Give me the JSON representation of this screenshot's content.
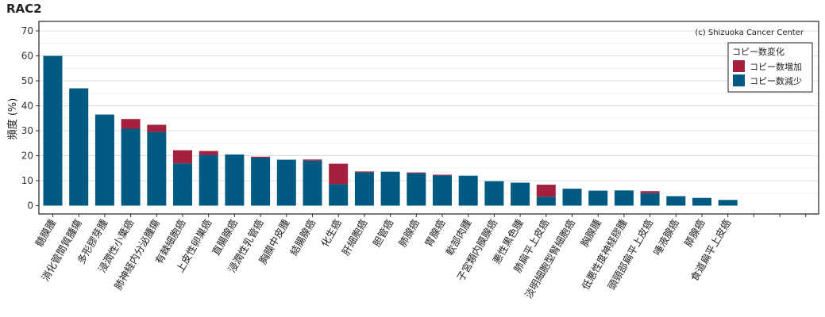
{
  "chart_data": {
    "type": "bar",
    "stacked": true,
    "title": "RAC2",
    "ylabel": "頻度 (%)",
    "xlabel": "",
    "ylim": [
      0,
      72
    ],
    "yticks": [
      0,
      10,
      20,
      30,
      40,
      50,
      60,
      70
    ],
    "grid": true,
    "credit": "(c) Shizuoka Cancer Center",
    "legend": {
      "title": "コピー数変化",
      "position": "top-right"
    },
    "categories": [
      "髄膜腫",
      "消化管間質腫瘍",
      "多形膠芽腫",
      "浸潤性小葉癌",
      "肺神経内分泌腫瘍",
      "有棘細胞癌",
      "上皮性卵巣癌",
      "直腸腺癌",
      "浸潤性乳管癌",
      "胸膜中皮腫",
      "結腸腺癌",
      "化生癌",
      "肝細胞癌",
      "胆管癌",
      "肺腺癌",
      "胃腺癌",
      "軟部肉腫",
      "子宮類内膜腺癌",
      "悪性黒色腫",
      "肺扁平上皮癌",
      "淡明細胞型腎細胞癌",
      "胸腺腫",
      "低悪性度神経膠腫",
      "頭頸部扁平上皮癌",
      "唾液腺癌",
      "膵腺癌",
      "食道扁平上皮癌",
      "",
      "",
      ""
    ],
    "series": [
      {
        "name": "コピー数減少",
        "color": "#005a82",
        "values": [
          60.0,
          47.0,
          36.5,
          30.8,
          29.5,
          16.9,
          20.3,
          20.5,
          19.2,
          18.4,
          18.0,
          8.6,
          13.3,
          13.6,
          13.0,
          12.1,
          12.0,
          9.8,
          9.2,
          3.6,
          6.8,
          6.0,
          6.1,
          5.0,
          3.8,
          3.1,
          2.3,
          0,
          0,
          0
        ]
      },
      {
        "name": "コピー数増加",
        "color": "#a3213e",
        "values": [
          0,
          0,
          0,
          3.9,
          2.9,
          5.3,
          1.6,
          0,
          0.4,
          0,
          0.5,
          8.2,
          0.4,
          0,
          0.3,
          0.3,
          0,
          0,
          0,
          4.8,
          0,
          0,
          0,
          0.8,
          0,
          0,
          0,
          0,
          0,
          0
        ]
      }
    ]
  }
}
